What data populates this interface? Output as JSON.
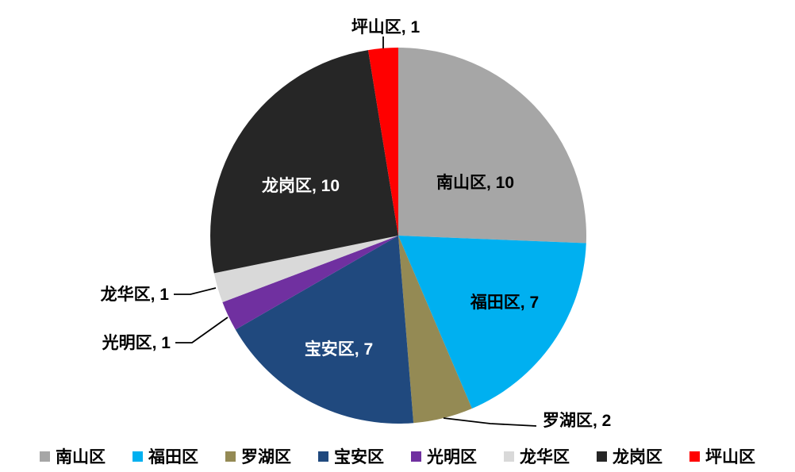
{
  "chart_data": {
    "type": "pie",
    "title": "",
    "total": 39,
    "start_angle_deg": 0,
    "direction": "clockwise",
    "background": "#FFFFFF",
    "label_format": "category, value",
    "slices": [
      {
        "name": "南山区",
        "value": 10,
        "color": "#A6A6A6",
        "label": "南山区, 10",
        "label_placement": "inside",
        "label_color": "#000000"
      },
      {
        "name": "福田区",
        "value": 7,
        "color": "#00B0F0",
        "label": "福田区, 7",
        "label_placement": "inside",
        "label_color": "#000000"
      },
      {
        "name": "罗湖区",
        "value": 2,
        "color": "#948A54",
        "label": "罗湖区, 2",
        "label_placement": "outside",
        "label_color": "#000000"
      },
      {
        "name": "宝安区",
        "value": 7,
        "color": "#20497E",
        "label": "宝安区, 7",
        "label_placement": "inside",
        "label_color": "#FFFFFF"
      },
      {
        "name": "光明区",
        "value": 1,
        "color": "#7030A0",
        "label": "光明区, 1",
        "label_placement": "outside",
        "label_color": "#000000"
      },
      {
        "name": "龙华区",
        "value": 1,
        "color": "#D9D9D9",
        "label": "龙华区, 1",
        "label_placement": "outside",
        "label_color": "#000000"
      },
      {
        "name": "龙岗区",
        "value": 10,
        "color": "#262626",
        "label": "龙岗区, 10",
        "label_placement": "inside",
        "label_color": "#FFFFFF"
      },
      {
        "name": "坪山区",
        "value": 1,
        "color": "#FF0000",
        "label": "坪山区, 1",
        "label_placement": "outside",
        "label_color": "#000000"
      }
    ],
    "legend": {
      "position": "bottom",
      "entries": [
        "南山区",
        "福田区",
        "罗湖区",
        "宝安区",
        "光明区",
        "龙华区",
        "龙岗区",
        "坪山区"
      ]
    }
  }
}
